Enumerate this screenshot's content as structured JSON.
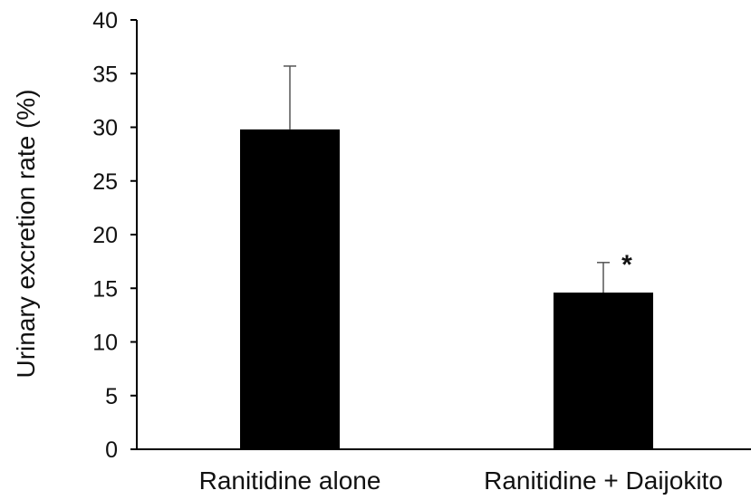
{
  "chart_data": {
    "type": "bar",
    "categories": [
      "Ranitidine alone",
      "Ranitidine + Daijokito"
    ],
    "values": [
      29.8,
      14.6
    ],
    "error_bars": [
      5.9,
      2.8
    ],
    "annotations": [
      "",
      "*"
    ],
    "ylabel": "Urinary excretion rate (%)",
    "ylim": [
      0,
      40
    ],
    "yticks": [
      0,
      5,
      10,
      15,
      20,
      25,
      30,
      35,
      40
    ],
    "grid": false,
    "colors": {
      "bar": "#000000",
      "axis": "#000000",
      "error_bar": "#555555"
    }
  }
}
